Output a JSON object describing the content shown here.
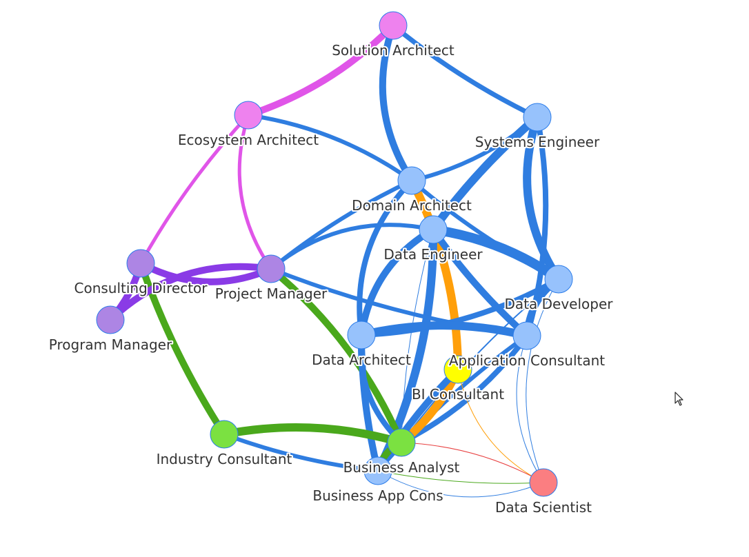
{
  "graph": {
    "colors": {
      "architect": "#e055e8",
      "management": "#8a3be6",
      "consulting": "#4aa81c",
      "data": "#2f7de0",
      "bi": "#ff9f0a",
      "science": "#e84040"
    },
    "nodes": [
      {
        "id": "solution-architect",
        "label": "Solution Architect",
        "fill": "#ee82ee"
      },
      {
        "id": "ecosystem-architect",
        "label": "Ecosystem Architect",
        "fill": "#ee82ee"
      },
      {
        "id": "systems-engineer",
        "label": "Systems Engineer",
        "fill": "#97c2fc"
      },
      {
        "id": "domain-architect",
        "label": "Domain Architect",
        "fill": "#97c2fc"
      },
      {
        "id": "data-engineer",
        "label": "Data Engineer",
        "fill": "#97c2fc"
      },
      {
        "id": "consulting-director",
        "label": "Consulting Director",
        "fill": "#ad85e4"
      },
      {
        "id": "project-manager",
        "label": "Project Manager",
        "fill": "#ad85e4"
      },
      {
        "id": "program-manager",
        "label": "Program Manager",
        "fill": "#ad85e4"
      },
      {
        "id": "data-developer",
        "label": "Data Developer",
        "fill": "#97c2fc"
      },
      {
        "id": "data-architect",
        "label": "Data Architect",
        "fill": "#97c2fc"
      },
      {
        "id": "application-consultant",
        "label": "Application Consultant",
        "fill": "#97c2fc"
      },
      {
        "id": "bi-consultant",
        "label": "BI Consultant",
        "fill": "#ffff00"
      },
      {
        "id": "industry-consultant",
        "label": "Industry Consultant",
        "fill": "#7be141"
      },
      {
        "id": "business-analyst",
        "label": "Business Analyst",
        "fill": "#7be141"
      },
      {
        "id": "business-app-cons",
        "label": "Business App Cons",
        "fill": "#97c2fc"
      },
      {
        "id": "data-scientist",
        "label": "Data Scientist",
        "fill": "#fb7e81"
      }
    ],
    "edges": [
      {
        "from": "solution-architect",
        "to": "ecosystem-architect",
        "color": "architect",
        "weight": 10
      },
      {
        "from": "solution-architect",
        "to": "systems-engineer",
        "color": "data",
        "weight": 7
      },
      {
        "from": "solution-architect",
        "to": "domain-architect",
        "color": "data",
        "weight": 10
      },
      {
        "from": "ecosystem-architect",
        "to": "domain-architect",
        "color": "data",
        "weight": 6
      },
      {
        "from": "ecosystem-architect",
        "to": "consulting-director",
        "color": "architect",
        "weight": 5
      },
      {
        "from": "ecosystem-architect",
        "to": "project-manager",
        "color": "architect",
        "weight": 5
      },
      {
        "from": "systems-engineer",
        "to": "domain-architect",
        "color": "data",
        "weight": 6
      },
      {
        "from": "systems-engineer",
        "to": "data-engineer",
        "color": "data",
        "weight": 12
      },
      {
        "from": "systems-engineer",
        "to": "data-developer",
        "color": "data",
        "weight": 12
      },
      {
        "from": "systems-engineer",
        "to": "application-consultant",
        "color": "data",
        "weight": 8
      },
      {
        "from": "domain-architect",
        "to": "project-manager",
        "color": "data",
        "weight": 6
      },
      {
        "from": "domain-architect",
        "to": "data-architect",
        "color": "data",
        "weight": 8
      },
      {
        "from": "domain-architect",
        "to": "bi-consultant",
        "color": "bi",
        "weight": 12
      },
      {
        "from": "domain-architect",
        "to": "data-developer",
        "color": "data",
        "weight": 6
      },
      {
        "from": "data-engineer",
        "to": "project-manager",
        "color": "data",
        "weight": 6
      },
      {
        "from": "data-engineer",
        "to": "data-developer",
        "color": "data",
        "weight": 14
      },
      {
        "from": "data-engineer",
        "to": "application-consultant",
        "color": "data",
        "weight": 10
      },
      {
        "from": "data-engineer",
        "to": "data-architect",
        "color": "data",
        "weight": 10
      },
      {
        "from": "data-engineer",
        "to": "business-app-cons",
        "color": "data",
        "weight": 12
      },
      {
        "from": "data-engineer",
        "to": "business-analyst",
        "color": "data",
        "weight": 1
      },
      {
        "from": "consulting-director",
        "to": "project-manager",
        "color": "management",
        "weight": 10
      },
      {
        "from": "consulting-director",
        "to": "program-manager",
        "color": "management",
        "weight": 10
      },
      {
        "from": "consulting-director",
        "to": "industry-consultant",
        "color": "consulting",
        "weight": 10
      },
      {
        "from": "project-manager",
        "to": "program-manager",
        "color": "management",
        "weight": 10
      },
      {
        "from": "project-manager",
        "to": "business-analyst",
        "color": "consulting",
        "weight": 10
      },
      {
        "from": "project-manager",
        "to": "application-consultant",
        "color": "data",
        "weight": 6
      },
      {
        "from": "data-developer",
        "to": "application-consultant",
        "color": "data",
        "weight": 10
      },
      {
        "from": "data-developer",
        "to": "data-architect",
        "color": "data",
        "weight": 8
      },
      {
        "from": "data-developer",
        "to": "business-analyst",
        "color": "data",
        "weight": 2
      },
      {
        "from": "data-developer",
        "to": "data-scientist",
        "color": "data",
        "weight": 1
      },
      {
        "from": "data-architect",
        "to": "application-consultant",
        "color": "data",
        "weight": 12
      },
      {
        "from": "data-architect",
        "to": "business-app-cons",
        "color": "data",
        "weight": 10
      },
      {
        "from": "data-architect",
        "to": "business-analyst",
        "color": "data",
        "weight": 8
      },
      {
        "from": "application-consultant",
        "to": "business-analyst",
        "color": "data",
        "weight": 8
      },
      {
        "from": "application-consultant",
        "to": "business-app-cons",
        "color": "data",
        "weight": 6
      },
      {
        "from": "application-consultant",
        "to": "data-scientist",
        "color": "data",
        "weight": 1
      },
      {
        "from": "bi-consultant",
        "to": "business-analyst",
        "color": "bi",
        "weight": 12
      },
      {
        "from": "bi-consultant",
        "to": "business-app-cons",
        "color": "data",
        "weight": 10
      },
      {
        "from": "bi-consultant",
        "to": "data-scientist",
        "color": "bi",
        "weight": 1
      },
      {
        "from": "industry-consultant",
        "to": "business-analyst",
        "color": "consulting",
        "weight": 12
      },
      {
        "from": "industry-consultant",
        "to": "business-app-cons",
        "color": "data",
        "weight": 6
      },
      {
        "from": "business-analyst",
        "to": "business-app-cons",
        "color": "consulting",
        "weight": 10
      },
      {
        "from": "business-analyst",
        "to": "data-scientist",
        "color": "science",
        "weight": 1
      },
      {
        "from": "business-app-cons",
        "to": "data-scientist",
        "color": "consulting",
        "weight": 1
      },
      {
        "from": "business-app-cons",
        "to": "data-scientist",
        "color": "data",
        "weight": 1
      }
    ]
  },
  "cursor": {
    "icon": "mouse-pointer-icon"
  }
}
